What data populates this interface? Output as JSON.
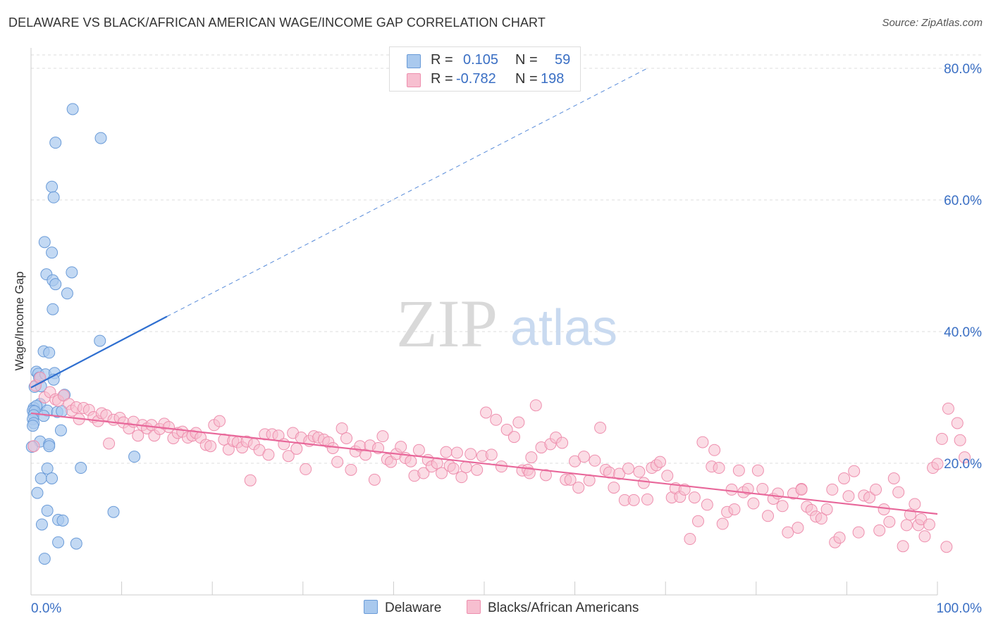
{
  "title": "DELAWARE VS BLACK/AFRICAN AMERICAN WAGE/INCOME GAP CORRELATION CHART",
  "source": "Source: ZipAtlas.com",
  "watermark": {
    "zip": "ZIP",
    "atlas": "atlas"
  },
  "legend_top": {
    "series1": {
      "r_label": "R =",
      "r_value": "0.105",
      "n_label": "N =",
      "n_value": "59"
    },
    "series2": {
      "r_label": "R =",
      "r_value": "-0.782",
      "n_label": "N =",
      "n_value": "198"
    }
  },
  "legend_bottom": {
    "series1": "Delaware",
    "series2": "Blacks/African Americans"
  },
  "colors": {
    "delaware_fill": "#a9c9ee",
    "delaware_stroke": "#6a9bd8",
    "delaware_line": "#2f6fd0",
    "black_fill": "#f7bfd0",
    "black_stroke": "#ee8fae",
    "black_line": "#e8679a",
    "tick_label": "#3a6fc4",
    "grid": "#dddddd"
  },
  "chart_data": {
    "type": "scatter",
    "title": "DELAWARE VS BLACK/AFRICAN AMERICAN WAGE/INCOME GAP CORRELATION CHART",
    "xlabel": "",
    "ylabel": "Wage/Income Gap",
    "xlim": [
      0,
      100
    ],
    "ylim": [
      0,
      80
    ],
    "y_ticks": [
      {
        "value": 20,
        "label": "20.0%"
      },
      {
        "value": 40,
        "label": "40.0%"
      },
      {
        "value": 60,
        "label": "60.0%"
      },
      {
        "value": 80,
        "label": "80.0%"
      }
    ],
    "x_tick_labels": [
      {
        "value": 0,
        "label": "0.0%"
      },
      {
        "value": 100,
        "label": "100.0%"
      }
    ],
    "x_minor_ticks": [
      10,
      20,
      30,
      40,
      50,
      60,
      70,
      80,
      90
    ],
    "grid": true,
    "legend_position": "top-center",
    "series": [
      {
        "name": "Delaware",
        "r": 0.105,
        "n": 59,
        "trend": {
          "x0": 0,
          "y0": 31.5,
          "x1": 15,
          "y1": 42.3,
          "dash_to_x": 68,
          "dash_to_y": 80
        },
        "points": [
          [
            4.6,
            73.8
          ],
          [
            7.7,
            69.4
          ],
          [
            2.7,
            68.7
          ],
          [
            2.3,
            62.0
          ],
          [
            2.5,
            60.4
          ],
          [
            1.5,
            53.6
          ],
          [
            2.3,
            52.0
          ],
          [
            1.7,
            48.7
          ],
          [
            4.5,
            49.0
          ],
          [
            2.4,
            47.8
          ],
          [
            2.7,
            47.2
          ],
          [
            4.0,
            45.8
          ],
          [
            2.4,
            43.4
          ],
          [
            7.6,
            38.6
          ],
          [
            1.4,
            37.0
          ],
          [
            2.0,
            36.8
          ],
          [
            0.6,
            33.9
          ],
          [
            0.8,
            33.6
          ],
          [
            0.9,
            33.0
          ],
          [
            1.6,
            33.5
          ],
          [
            2.6,
            33.7
          ],
          [
            2.5,
            32.7
          ],
          [
            0.4,
            31.6
          ],
          [
            1.1,
            31.7
          ],
          [
            3.7,
            30.4
          ],
          [
            1.0,
            29.0
          ],
          [
            0.3,
            28.4
          ],
          [
            0.6,
            28.7
          ],
          [
            0.2,
            28.0
          ],
          [
            0.4,
            27.9
          ],
          [
            1.8,
            28.0
          ],
          [
            2.9,
            27.8
          ],
          [
            3.4,
            27.9
          ],
          [
            0.3,
            27.3
          ],
          [
            1.4,
            27.2
          ],
          [
            0.2,
            26.7
          ],
          [
            0.3,
            26.1
          ],
          [
            0.2,
            25.7
          ],
          [
            3.3,
            25.0
          ],
          [
            1.0,
            23.3
          ],
          [
            0.1,
            22.5
          ],
          [
            2.0,
            22.9
          ],
          [
            2.0,
            22.6
          ],
          [
            11.4,
            21.0
          ],
          [
            1.8,
            19.2
          ],
          [
            5.5,
            19.3
          ],
          [
            1.1,
            17.7
          ],
          [
            2.3,
            17.7
          ],
          [
            0.7,
            15.5
          ],
          [
            1.8,
            12.8
          ],
          [
            9.1,
            12.6
          ],
          [
            3.0,
            11.4
          ],
          [
            3.5,
            11.3
          ],
          [
            1.2,
            10.7
          ],
          [
            3.0,
            8.0
          ],
          [
            5.0,
            7.8
          ],
          [
            1.5,
            5.5
          ]
        ]
      },
      {
        "name": "Blacks/African Americans",
        "r": -0.782,
        "n": 198,
        "trend": {
          "x0": 0,
          "y0": 27.6,
          "x1": 100,
          "y1": 12.3
        },
        "points": [
          [
            0.3,
            22.6
          ],
          [
            0.5,
            31.8
          ],
          [
            1.0,
            33.0
          ],
          [
            1.5,
            30.0
          ],
          [
            2.1,
            30.8
          ],
          [
            2.7,
            29.7
          ],
          [
            3.0,
            29.5
          ],
          [
            3.6,
            30.3
          ],
          [
            4.2,
            29.0
          ],
          [
            4.5,
            28.0
          ],
          [
            5.0,
            28.5
          ],
          [
            5.3,
            26.7
          ],
          [
            5.8,
            28.4
          ],
          [
            6.4,
            28.1
          ],
          [
            6.9,
            27.0
          ],
          [
            7.4,
            26.4
          ],
          [
            7.8,
            27.6
          ],
          [
            8.3,
            27.3
          ],
          [
            8.6,
            23.0
          ],
          [
            9.1,
            26.6
          ],
          [
            9.8,
            26.9
          ],
          [
            10.2,
            26.2
          ],
          [
            10.8,
            25.3
          ],
          [
            11.3,
            26.3
          ],
          [
            11.8,
            24.2
          ],
          [
            12.3,
            25.8
          ],
          [
            12.8,
            25.3
          ],
          [
            13.3,
            25.8
          ],
          [
            13.6,
            24.2
          ],
          [
            14.2,
            25.2
          ],
          [
            14.7,
            26.0
          ],
          [
            15.2,
            25.5
          ],
          [
            15.7,
            23.8
          ],
          [
            16.2,
            24.6
          ],
          [
            16.7,
            24.8
          ],
          [
            17.3,
            23.9
          ],
          [
            17.8,
            24.2
          ],
          [
            18.2,
            24.6
          ],
          [
            18.7,
            23.9
          ],
          [
            19.3,
            22.8
          ],
          [
            19.8,
            22.6
          ],
          [
            20.2,
            25.8
          ],
          [
            20.8,
            26.4
          ],
          [
            21.3,
            23.6
          ],
          [
            21.8,
            22.1
          ],
          [
            22.3,
            23.4
          ],
          [
            22.8,
            23.2
          ],
          [
            23.3,
            22.4
          ],
          [
            23.8,
            23.3
          ],
          [
            24.2,
            17.4
          ],
          [
            24.6,
            22.9
          ],
          [
            25.2,
            22.0
          ],
          [
            25.8,
            24.4
          ],
          [
            26.2,
            21.3
          ],
          [
            26.6,
            24.4
          ],
          [
            27.3,
            24.2
          ],
          [
            27.9,
            22.9
          ],
          [
            28.4,
            21.1
          ],
          [
            28.9,
            24.6
          ],
          [
            29.3,
            22.2
          ],
          [
            29.8,
            23.9
          ],
          [
            30.3,
            19.1
          ],
          [
            30.7,
            23.4
          ],
          [
            31.2,
            24.1
          ],
          [
            31.7,
            23.9
          ],
          [
            32.3,
            23.6
          ],
          [
            32.8,
            23.2
          ],
          [
            33.3,
            22.3
          ],
          [
            33.8,
            20.2
          ],
          [
            34.3,
            25.3
          ],
          [
            34.8,
            23.8
          ],
          [
            35.3,
            19.0
          ],
          [
            35.8,
            21.8
          ],
          [
            36.3,
            22.6
          ],
          [
            36.9,
            21.3
          ],
          [
            37.4,
            22.7
          ],
          [
            37.9,
            17.5
          ],
          [
            38.3,
            22.3
          ],
          [
            38.8,
            24.1
          ],
          [
            39.3,
            20.6
          ],
          [
            39.7,
            20.2
          ],
          [
            40.3,
            21.4
          ],
          [
            40.8,
            22.5
          ],
          [
            41.3,
            20.8
          ],
          [
            41.9,
            20.3
          ],
          [
            42.3,
            18.1
          ],
          [
            42.8,
            22.0
          ],
          [
            43.3,
            18.5
          ],
          [
            43.8,
            20.5
          ],
          [
            44.2,
            19.5
          ],
          [
            44.8,
            20.0
          ],
          [
            45.3,
            18.5
          ],
          [
            45.8,
            21.7
          ],
          [
            46.2,
            19.6
          ],
          [
            46.6,
            19.2
          ],
          [
            47.0,
            21.6
          ],
          [
            47.5,
            17.9
          ],
          [
            48.0,
            19.4
          ],
          [
            48.5,
            21.4
          ],
          [
            49.2,
            19.0
          ],
          [
            49.8,
            21.1
          ],
          [
            50.2,
            27.7
          ],
          [
            50.8,
            21.3
          ],
          [
            51.3,
            26.6
          ],
          [
            51.9,
            19.5
          ],
          [
            52.5,
            25.1
          ],
          [
            53.3,
            24.0
          ],
          [
            53.8,
            26.2
          ],
          [
            54.2,
            18.9
          ],
          [
            54.8,
            19.0
          ],
          [
            55.2,
            20.9
          ],
          [
            55.7,
            28.8
          ],
          [
            56.3,
            22.4
          ],
          [
            56.8,
            18.2
          ],
          [
            57.3,
            22.9
          ],
          [
            57.9,
            23.9
          ],
          [
            58.6,
            23.1
          ],
          [
            59.0,
            17.5
          ],
          [
            59.5,
            17.5
          ],
          [
            60.0,
            20.3
          ],
          [
            60.4,
            16.3
          ],
          [
            61.0,
            21.0
          ],
          [
            61.6,
            17.4
          ],
          [
            62.2,
            20.4
          ],
          [
            62.8,
            25.4
          ],
          [
            63.4,
            19.0
          ],
          [
            63.8,
            18.6
          ],
          [
            64.3,
            16.3
          ],
          [
            64.9,
            18.4
          ],
          [
            65.5,
            14.4
          ],
          [
            65.9,
            19.2
          ],
          [
            66.5,
            14.4
          ],
          [
            67.1,
            18.7
          ],
          [
            67.6,
            17.0
          ],
          [
            68.0,
            14.5
          ],
          [
            68.5,
            19.3
          ],
          [
            69.0,
            19.7
          ],
          [
            69.4,
            20.2
          ],
          [
            70.2,
            18.1
          ],
          [
            70.7,
            14.8
          ],
          [
            71.1,
            16.2
          ],
          [
            71.6,
            14.9
          ],
          [
            72.1,
            16.0
          ],
          [
            72.7,
            8.5
          ],
          [
            73.2,
            14.8
          ],
          [
            73.6,
            11.2
          ],
          [
            74.1,
            23.2
          ],
          [
            74.6,
            13.7
          ],
          [
            75.1,
            19.5
          ],
          [
            75.4,
            22.0
          ],
          [
            75.9,
            19.3
          ],
          [
            76.3,
            10.8
          ],
          [
            76.8,
            12.6
          ],
          [
            77.3,
            16.0
          ],
          [
            77.6,
            13.0
          ],
          [
            78.1,
            18.9
          ],
          [
            78.6,
            15.6
          ],
          [
            79.1,
            16.1
          ],
          [
            79.7,
            13.9
          ],
          [
            80.2,
            18.9
          ],
          [
            80.7,
            16.1
          ],
          [
            81.3,
            12.0
          ],
          [
            81.9,
            14.6
          ],
          [
            82.4,
            15.4
          ],
          [
            82.9,
            13.5
          ],
          [
            83.5,
            9.5
          ],
          [
            84.1,
            15.4
          ],
          [
            84.6,
            10.2
          ],
          [
            85.0,
            16.1
          ],
          [
            85.6,
            13.4
          ],
          [
            86.1,
            12.9
          ],
          [
            86.6,
            11.9
          ],
          [
            87.2,
            11.6
          ],
          [
            87.8,
            13.0
          ],
          [
            88.4,
            16.0
          ],
          [
            88.7,
            8.0
          ],
          [
            89.2,
            8.7
          ],
          [
            89.7,
            17.7
          ],
          [
            90.2,
            15.0
          ],
          [
            90.8,
            18.8
          ],
          [
            91.3,
            9.5
          ],
          [
            91.9,
            15.1
          ],
          [
            92.5,
            14.8
          ],
          [
            93.2,
            16.0
          ],
          [
            93.6,
            9.8
          ],
          [
            94.1,
            13.0
          ],
          [
            94.7,
            11.1
          ],
          [
            95.2,
            17.7
          ],
          [
            95.7,
            15.6
          ],
          [
            96.2,
            7.4
          ],
          [
            96.6,
            10.6
          ],
          [
            97.0,
            12.2
          ],
          [
            97.5,
            13.8
          ],
          [
            97.9,
            10.6
          ],
          [
            98.2,
            11.5
          ],
          [
            98.6,
            8.9
          ],
          [
            99.1,
            10.7
          ],
          [
            99.5,
            19.3
          ],
          [
            100.0,
            19.9
          ],
          [
            100.5,
            23.7
          ],
          [
            101.0,
            7.3
          ],
          [
            101.2,
            28.3
          ],
          [
            102.2,
            26.1
          ],
          [
            102.5,
            23.5
          ],
          [
            103.0,
            20.9
          ],
          [
            85.0,
            16.0
          ],
          [
            55.0,
            18.5
          ]
        ]
      }
    ]
  }
}
